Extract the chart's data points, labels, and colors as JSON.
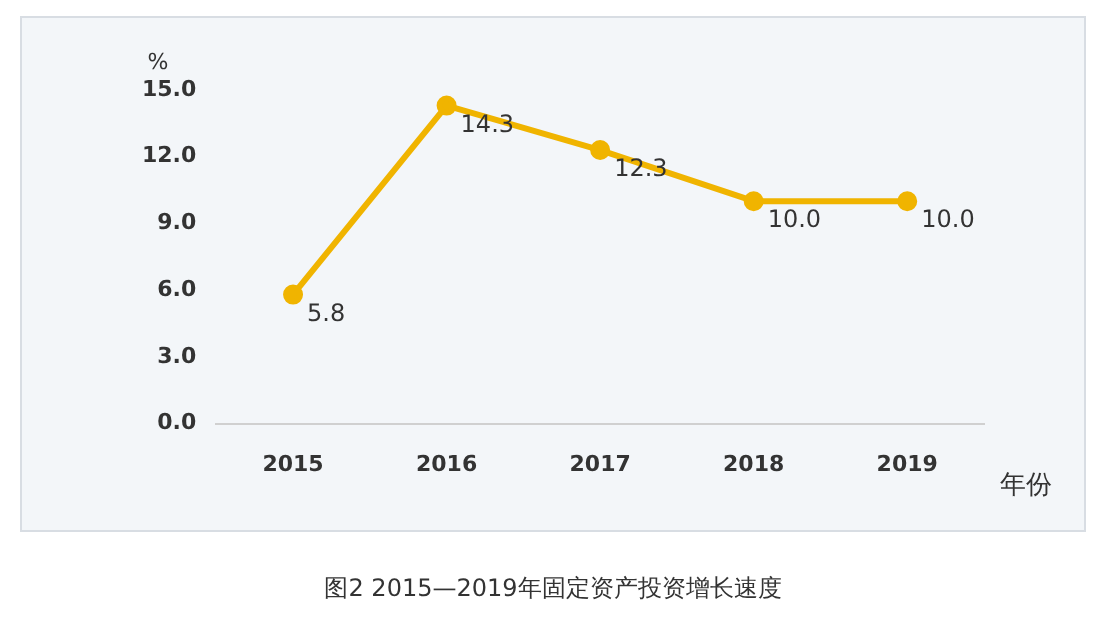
{
  "chart_data": {
    "type": "line",
    "title": "图2 2015—2019年固定资产投资增长速度",
    "xlabel": "年份",
    "ylabel": "%",
    "categories": [
      "2015",
      "2016",
      "2017",
      "2018",
      "2019"
    ],
    "series": [
      {
        "color": "#f0b400",
        "values": [
          5.8,
          14.3,
          12.3,
          10.0,
          10.0
        ],
        "value_labels": [
          "5.8",
          "14.3",
          "12.3",
          "10.0",
          "10.0"
        ]
      }
    ],
    "ylim": [
      0,
      15
    ],
    "yticks": [
      {
        "value": 0,
        "label": "0.0"
      },
      {
        "value": 3,
        "label": "3.0"
      },
      {
        "value": 6,
        "label": "6.0"
      },
      {
        "value": 9,
        "label": "9.0"
      },
      {
        "value": 12,
        "label": "12.0"
      },
      {
        "value": 15,
        "label": "15.0"
      }
    ],
    "grid": false,
    "legend": false,
    "marker": "circle",
    "line_style": "solid"
  }
}
